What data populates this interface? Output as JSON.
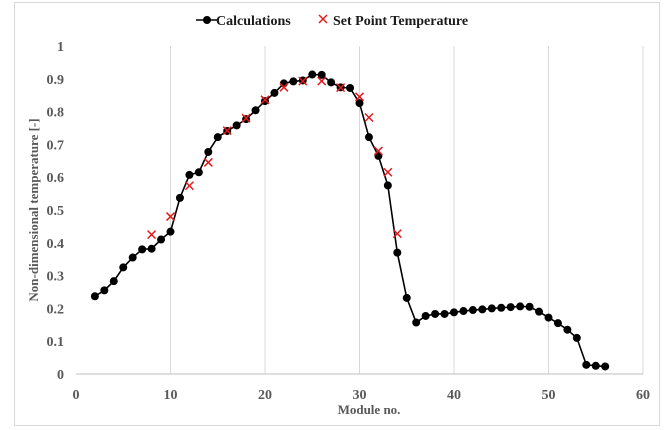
{
  "chart_data": {
    "type": "scatter",
    "xlabel": "Module no.",
    "ylabel": "Non-dimensional temperature [-]",
    "xlim": [
      0,
      60
    ],
    "ylim": [
      0,
      1
    ],
    "x_ticks": [
      "0",
      "10",
      "20",
      "30",
      "40",
      "50",
      "60"
    ],
    "y_ticks": [
      "0",
      "0.1",
      "0.2",
      "0.3",
      "0.4",
      "0.5",
      "0.6",
      "0.7",
      "0.8",
      "0.9",
      "1"
    ],
    "grid": "vertical",
    "legend_position": "top-center",
    "series": [
      {
        "name": "Calculations",
        "style": "line-with-circle-markers",
        "color": "#000000",
        "points": [
          [
            2,
            0.237
          ],
          [
            3,
            0.255
          ],
          [
            4,
            0.283
          ],
          [
            5,
            0.325
          ],
          [
            6,
            0.355
          ],
          [
            7,
            0.38
          ],
          [
            8,
            0.382
          ],
          [
            9,
            0.41
          ],
          [
            10,
            0.434
          ],
          [
            11,
            0.537
          ],
          [
            12,
            0.607
          ],
          [
            13,
            0.615
          ],
          [
            14,
            0.677
          ],
          [
            15,
            0.722
          ],
          [
            16,
            0.741
          ],
          [
            17,
            0.758
          ],
          [
            18,
            0.777
          ],
          [
            19,
            0.804
          ],
          [
            20,
            0.832
          ],
          [
            21,
            0.857
          ],
          [
            22,
            0.886
          ],
          [
            23,
            0.892
          ],
          [
            24,
            0.895
          ],
          [
            25,
            0.913
          ],
          [
            26,
            0.912
          ],
          [
            27,
            0.889
          ],
          [
            28,
            0.874
          ],
          [
            29,
            0.872
          ],
          [
            30,
            0.826
          ],
          [
            31,
            0.722
          ],
          [
            32,
            0.665
          ],
          [
            33,
            0.575
          ],
          [
            34,
            0.37
          ],
          [
            35,
            0.232
          ],
          [
            36,
            0.157
          ],
          [
            37,
            0.177
          ],
          [
            38,
            0.183
          ],
          [
            39,
            0.183
          ],
          [
            40,
            0.188
          ],
          [
            41,
            0.192
          ],
          [
            42,
            0.195
          ],
          [
            43,
            0.197
          ],
          [
            44,
            0.2
          ],
          [
            45,
            0.202
          ],
          [
            46,
            0.204
          ],
          [
            47,
            0.206
          ],
          [
            48,
            0.205
          ],
          [
            49,
            0.19
          ],
          [
            50,
            0.172
          ],
          [
            51,
            0.155
          ],
          [
            52,
            0.135
          ],
          [
            53,
            0.11
          ],
          [
            54,
            0.028
          ],
          [
            55,
            0.025
          ],
          [
            56,
            0.023
          ]
        ]
      },
      {
        "name": "Set Point Temperature",
        "style": "x-markers",
        "color": "#e31a1c",
        "points": [
          [
            8,
            0.425
          ],
          [
            10,
            0.48
          ],
          [
            12,
            0.574
          ],
          [
            14,
            0.645
          ],
          [
            16,
            0.742
          ],
          [
            18,
            0.78
          ],
          [
            20,
            0.836
          ],
          [
            22,
            0.874
          ],
          [
            24,
            0.893
          ],
          [
            26,
            0.893
          ],
          [
            28,
            0.873
          ],
          [
            30,
            0.845
          ],
          [
            31,
            0.782
          ],
          [
            32,
            0.68
          ],
          [
            33,
            0.615
          ],
          [
            34,
            0.428
          ]
        ]
      }
    ]
  }
}
